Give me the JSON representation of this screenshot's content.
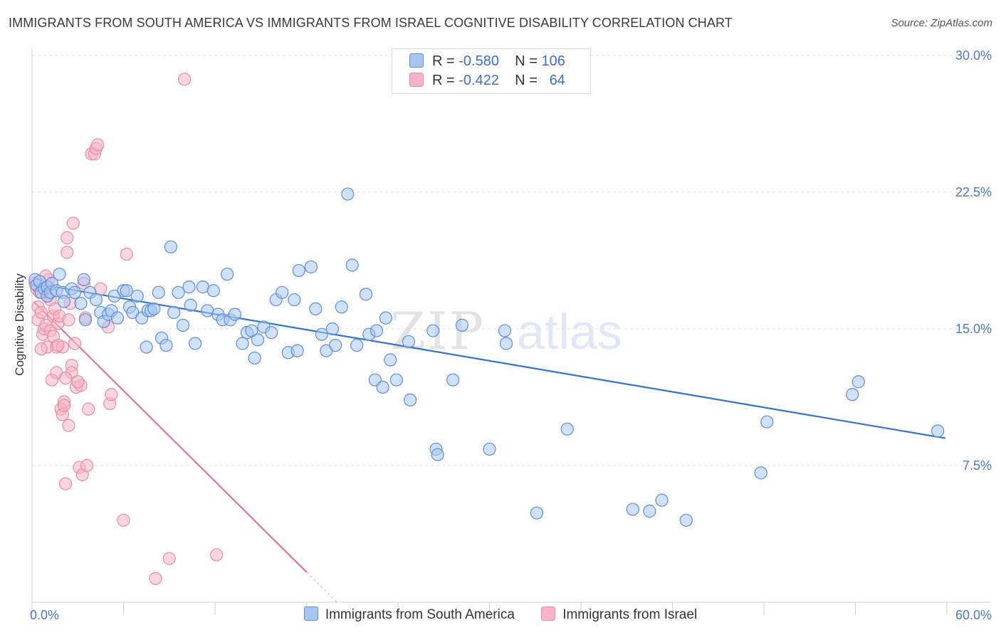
{
  "title": "IMMIGRANTS FROM SOUTH AMERICA VS IMMIGRANTS FROM ISRAEL COGNITIVE DISABILITY CORRELATION CHART",
  "source": "Source: ZipAtlas.com",
  "watermark": {
    "zip": "ZIP",
    "atlas": "atlas"
  },
  "colors": {
    "blue_fill": "#a9c6f0",
    "blue_stroke": "#5b8fd9",
    "blue_line": "#2f74d0",
    "pink_fill": "#f5b4c8",
    "pink_stroke": "#e98aa8",
    "pink_line": "#e5668f",
    "tick_text": "#4a78c8"
  },
  "legend": {
    "rows": [
      {
        "r_label": "R =",
        "r_value": "-0.580",
        "n_label": "N =",
        "n_value": "106"
      },
      {
        "r_label": "R =",
        "r_value": "-0.422",
        "n_label": "N =",
        "n_value": "64"
      }
    ]
  },
  "chart_data": {
    "type": "scatter",
    "title": "IMMIGRANTS FROM SOUTH AMERICA VS IMMIGRANTS FROM ISRAEL COGNITIVE DISABILITY CORRELATION CHART",
    "xlabel": "",
    "ylabel": "Cognitive Disability",
    "xlim": [
      0,
      60
    ],
    "ylim": [
      0,
      30
    ],
    "x_ticks": [
      0,
      60
    ],
    "x_tick_labels": [
      "0.0%",
      "60.0%"
    ],
    "y_ticks": [
      7.5,
      15,
      22.5,
      30
    ],
    "y_tick_labels": [
      "7.5%",
      "15.0%",
      "22.5%",
      "30.0%"
    ],
    "grid": "horizontal dashed",
    "legend_position": "top-center",
    "series": [
      {
        "name": "Immigrants from South America",
        "color": "#a9c6f0",
        "points": [
          [
            0.2,
            17.7
          ],
          [
            0.3,
            17.4
          ],
          [
            0.5,
            17.6
          ],
          [
            0.6,
            17.0
          ],
          [
            0.8,
            17.2
          ],
          [
            1.0,
            17.3
          ],
          [
            1.0,
            16.8
          ],
          [
            1.2,
            17.0
          ],
          [
            1.3,
            17.5
          ],
          [
            1.6,
            17.1
          ],
          [
            1.8,
            18.0
          ],
          [
            2.0,
            17.0
          ],
          [
            2.1,
            16.5
          ],
          [
            2.6,
            17.2
          ],
          [
            2.8,
            17.0
          ],
          [
            3.2,
            16.4
          ],
          [
            3.4,
            17.7
          ],
          [
            3.5,
            15.5
          ],
          [
            3.8,
            17.0
          ],
          [
            4.2,
            16.6
          ],
          [
            4.5,
            15.9
          ],
          [
            4.7,
            15.4
          ],
          [
            5.0,
            15.8
          ],
          [
            5.2,
            16.0
          ],
          [
            5.4,
            16.8
          ],
          [
            5.6,
            15.6
          ],
          [
            6.0,
            17.1
          ],
          [
            6.2,
            17.1
          ],
          [
            6.4,
            16.2
          ],
          [
            6.6,
            15.9
          ],
          [
            6.9,
            16.8
          ],
          [
            7.2,
            15.6
          ],
          [
            7.5,
            14.0
          ],
          [
            7.6,
            16.0
          ],
          [
            7.8,
            16.0
          ],
          [
            8.0,
            16.1
          ],
          [
            8.3,
            17.0
          ],
          [
            8.5,
            14.5
          ],
          [
            8.8,
            14.1
          ],
          [
            9.1,
            19.5
          ],
          [
            9.3,
            15.9
          ],
          [
            9.6,
            17.0
          ],
          [
            9.9,
            15.2
          ],
          [
            10.3,
            17.3
          ],
          [
            10.4,
            16.3
          ],
          [
            10.7,
            14.2
          ],
          [
            11.2,
            17.3
          ],
          [
            11.5,
            16.0
          ],
          [
            11.9,
            17.1
          ],
          [
            12.2,
            15.8
          ],
          [
            12.5,
            15.5
          ],
          [
            12.8,
            18.0
          ],
          [
            13.0,
            15.5
          ],
          [
            13.3,
            15.8
          ],
          [
            13.8,
            14.2
          ],
          [
            14.1,
            14.8
          ],
          [
            14.4,
            14.9
          ],
          [
            14.6,
            13.4
          ],
          [
            14.8,
            14.4
          ],
          [
            15.2,
            15.1
          ],
          [
            15.7,
            14.8
          ],
          [
            16.0,
            16.6
          ],
          [
            16.4,
            17.0
          ],
          [
            16.8,
            13.7
          ],
          [
            17.2,
            16.6
          ],
          [
            17.5,
            18.2
          ],
          [
            18.3,
            18.4
          ],
          [
            18.6,
            16.1
          ],
          [
            19.0,
            14.7
          ],
          [
            19.3,
            13.8
          ],
          [
            19.7,
            15.0
          ],
          [
            19.9,
            14.1
          ],
          [
            20.3,
            16.2
          ],
          [
            20.7,
            22.4
          ],
          [
            21.0,
            18.5
          ],
          [
            21.3,
            14.1
          ],
          [
            21.9,
            16.9
          ],
          [
            22.1,
            14.7
          ],
          [
            22.5,
            12.2
          ],
          [
            23.0,
            11.8
          ],
          [
            23.2,
            15.6
          ],
          [
            23.5,
            13.3
          ],
          [
            23.9,
            12.2
          ],
          [
            24.7,
            14.3
          ],
          [
            24.8,
            11.1
          ],
          [
            26.3,
            14.9
          ],
          [
            26.5,
            8.4
          ],
          [
            26.6,
            8.1
          ],
          [
            27.6,
            12.2
          ],
          [
            28.2,
            15.2
          ],
          [
            30.0,
            8.4
          ],
          [
            31.0,
            14.9
          ],
          [
            31.1,
            14.2
          ],
          [
            33.1,
            4.9
          ],
          [
            35.1,
            9.5
          ],
          [
            39.4,
            5.1
          ],
          [
            40.5,
            5.0
          ],
          [
            41.3,
            5.6
          ],
          [
            42.9,
            4.5
          ],
          [
            47.8,
            7.1
          ],
          [
            48.2,
            9.9
          ],
          [
            53.8,
            11.4
          ],
          [
            54.2,
            12.1
          ],
          [
            59.4,
            9.4
          ],
          [
            22.6,
            14.9
          ],
          [
            17.4,
            13.8
          ]
        ]
      },
      {
        "name": "Immigrants from Israel",
        "color": "#f5b4c8",
        "points": [
          [
            0.2,
            17.5
          ],
          [
            0.3,
            17.2
          ],
          [
            0.4,
            16.2
          ],
          [
            0.4,
            15.5
          ],
          [
            0.5,
            17.0
          ],
          [
            0.6,
            15.9
          ],
          [
            0.7,
            14.7
          ],
          [
            0.8,
            15.0
          ],
          [
            0.9,
            15.2
          ],
          [
            1.0,
            14.0
          ],
          [
            1.1,
            17.7
          ],
          [
            1.2,
            14.9
          ],
          [
            1.2,
            16.6
          ],
          [
            1.3,
            12.2
          ],
          [
            1.4,
            15.7
          ],
          [
            1.5,
            16.1
          ],
          [
            1.6,
            14.0
          ],
          [
            1.6,
            12.6
          ],
          [
            1.7,
            15.3
          ],
          [
            1.8,
            15.7
          ],
          [
            1.9,
            10.6
          ],
          [
            2.0,
            10.3
          ],
          [
            2.0,
            14.0
          ],
          [
            2.1,
            11.0
          ],
          [
            2.1,
            10.8
          ],
          [
            2.2,
            6.5
          ],
          [
            2.3,
            20.0
          ],
          [
            2.3,
            19.2
          ],
          [
            2.4,
            15.5
          ],
          [
            2.5,
            16.4
          ],
          [
            2.6,
            13.0
          ],
          [
            2.6,
            12.6
          ],
          [
            2.7,
            20.8
          ],
          [
            2.8,
            14.2
          ],
          [
            2.9,
            11.8
          ],
          [
            3.1,
            7.4
          ],
          [
            3.2,
            11.9
          ],
          [
            3.3,
            7.0
          ],
          [
            3.4,
            17.5
          ],
          [
            3.5,
            15.6
          ],
          [
            3.6,
            7.5
          ],
          [
            3.7,
            10.6
          ],
          [
            3.9,
            24.6
          ],
          [
            4.1,
            24.6
          ],
          [
            4.2,
            24.9
          ],
          [
            4.3,
            25.1
          ],
          [
            4.5,
            17.2
          ],
          [
            5.0,
            15.1
          ],
          [
            5.1,
            10.9
          ],
          [
            5.2,
            11.4
          ],
          [
            6.0,
            4.5
          ],
          [
            6.2,
            19.1
          ],
          [
            8.1,
            1.3
          ],
          [
            9.0,
            2.4
          ],
          [
            10.0,
            28.7
          ],
          [
            12.1,
            2.6
          ],
          [
            1.0,
            16.8
          ],
          [
            1.4,
            14.6
          ],
          [
            2.2,
            12.3
          ],
          [
            0.9,
            17.9
          ],
          [
            1.7,
            14.1
          ],
          [
            3.0,
            12.1
          ],
          [
            0.6,
            13.9
          ],
          [
            2.4,
            9.7
          ]
        ]
      }
    ],
    "trendlines": [
      {
        "series": "Immigrants from South America",
        "x": [
          0.1,
          59.9
        ],
        "y": [
          17.5,
          9.0
        ]
      },
      {
        "series": "Immigrants from Israel",
        "x": [
          0.1,
          20.0
        ],
        "y": [
          16.5,
          0.0
        ]
      }
    ]
  },
  "bottom_legend": [
    {
      "label": "Immigrants from South America"
    },
    {
      "label": "Immigrants from Israel"
    }
  ]
}
